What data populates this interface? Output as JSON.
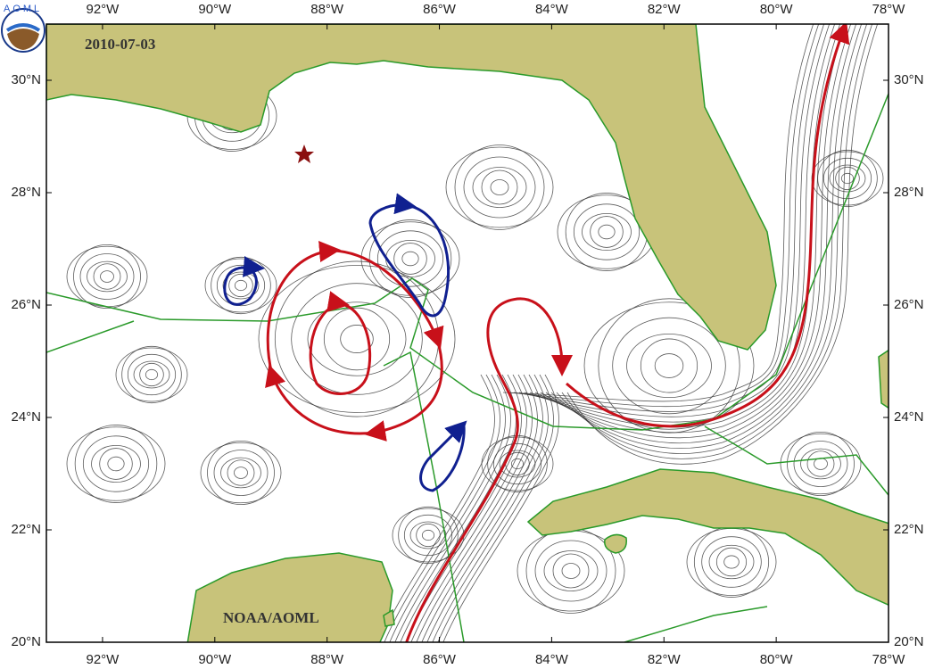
{
  "map": {
    "logo_text": "AOML",
    "date": "2010-07-03",
    "credit": "NOAA/AOML",
    "lon_range": [
      -93,
      -78
    ],
    "lat_range": [
      20,
      31
    ],
    "lon_ticks": [
      {
        "value": -92,
        "label": "92°W"
      },
      {
        "value": -90,
        "label": "90°W"
      },
      {
        "value": -88,
        "label": "88°W"
      },
      {
        "value": -86,
        "label": "86°W"
      },
      {
        "value": -84,
        "label": "84°W"
      },
      {
        "value": -82,
        "label": "82°W"
      },
      {
        "value": -80,
        "label": "80°W"
      },
      {
        "value": -78,
        "label": "78°W"
      }
    ],
    "lat_ticks": [
      {
        "value": 20,
        "label": "20°N"
      },
      {
        "value": 22,
        "label": "22°N"
      },
      {
        "value": 24,
        "label": "24°N"
      },
      {
        "value": 26,
        "label": "26°N"
      },
      {
        "value": 28,
        "label": "28°N"
      },
      {
        "value": 30,
        "label": "30°N"
      }
    ]
  }
}
